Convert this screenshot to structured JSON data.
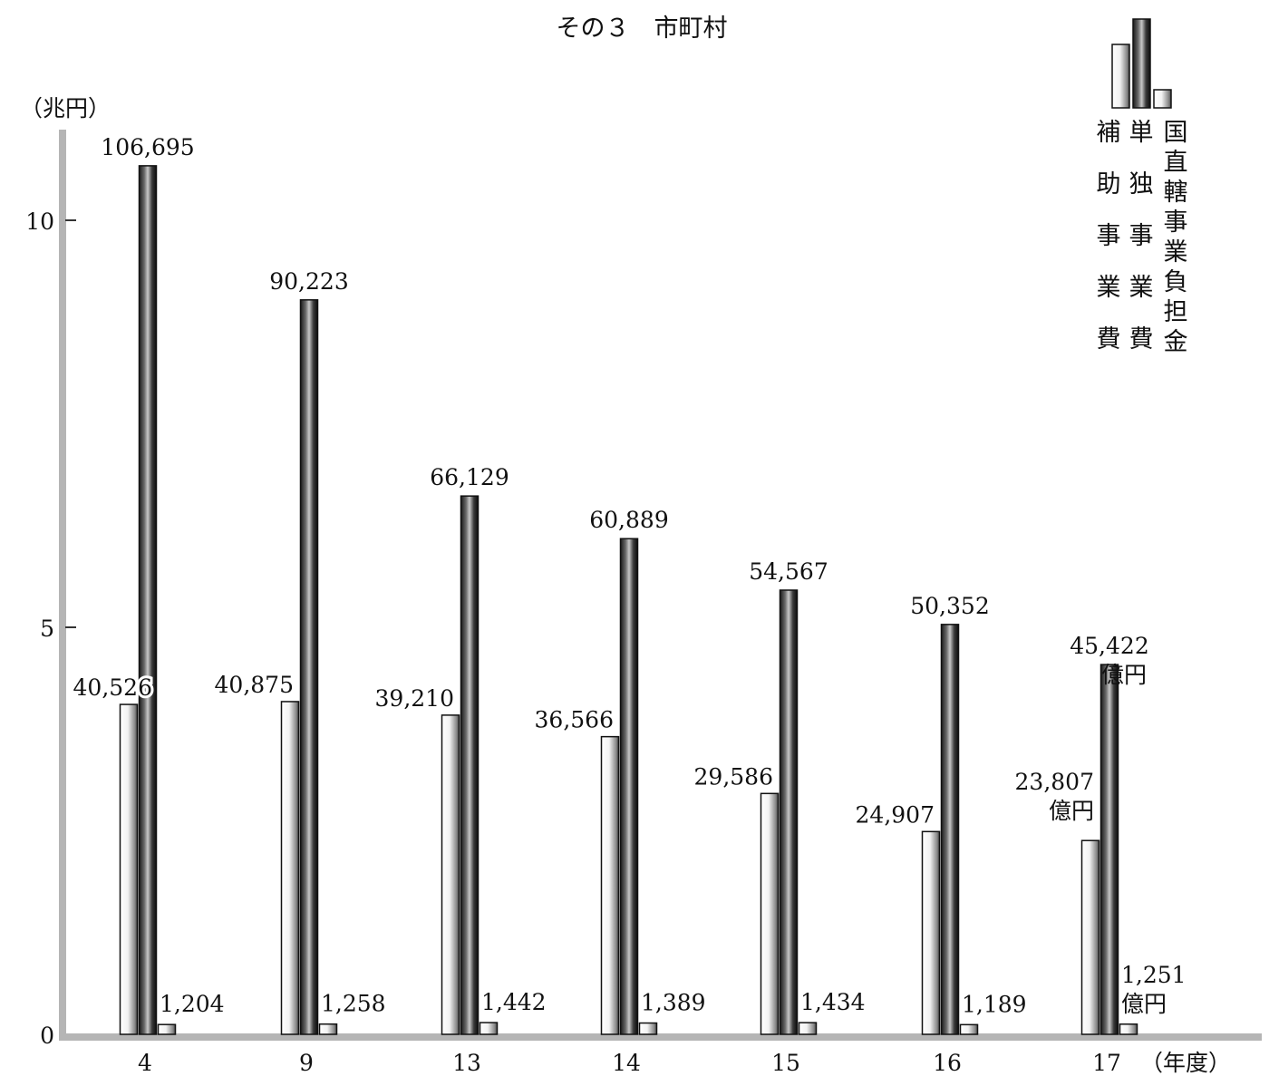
{
  "chart_data": {
    "type": "bar",
    "title": "その３　市町村",
    "yunit": "（兆円）",
    "xunit": "（年度）",
    "unit_label": "億円",
    "ylim": [
      0,
      11
    ],
    "yticks": [
      "0",
      "5",
      "10"
    ],
    "categories": [
      "4",
      "9",
      "13",
      "14",
      "15",
      "16",
      "17"
    ],
    "series": [
      {
        "name": "補助事業費",
        "values": [
          40526,
          40875,
          39210,
          36566,
          29586,
          24907,
          23807
        ],
        "labels": [
          "40,526",
          "40,875",
          "39,210",
          "36,566",
          "29,586",
          "24,907",
          "23,807"
        ]
      },
      {
        "name": "単独事業費",
        "values": [
          106695,
          90223,
          66129,
          60889,
          54567,
          50352,
          45422
        ],
        "labels": [
          "106,695",
          "90,223",
          "66,129",
          "60,889",
          "54,567",
          "50,352",
          "45,422"
        ]
      },
      {
        "name": "国直轄事業負担金",
        "values": [
          1204,
          1258,
          1442,
          1389,
          1434,
          1189,
          1251
        ],
        "labels": [
          "1,204",
          "1,258",
          "1,442",
          "1,389",
          "1,434",
          "1,189",
          "1,251"
        ]
      }
    ],
    "colors": [
      "#f4f4f4",
      "#2a2a2a",
      "#f4f4f4"
    ],
    "axis_color": "#b5b5b5",
    "grid": false,
    "legend_position": "top-right"
  }
}
